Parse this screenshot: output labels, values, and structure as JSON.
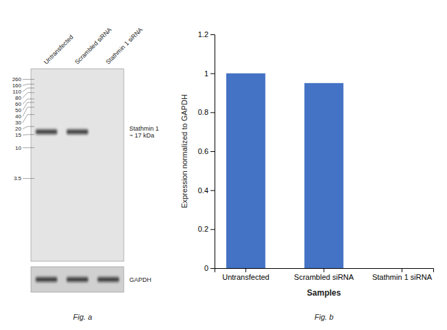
{
  "chart_data": [
    {
      "type": "blot",
      "categories": [
        "Untransfected",
        "Scrambled siRNA",
        "Stathmin 1 siRNA"
      ],
      "annotations": [
        "260",
        "160",
        "110",
        "80",
        "60",
        "50",
        "40",
        "30",
        "20",
        "15",
        "10",
        "3.5",
        "Stathmin 1\n~ 17 kDa",
        "GAPDH",
        "Fig. a"
      ]
    },
    {
      "type": "bar",
      "categories": [
        "Untransfected",
        "Scrambled siRNA",
        "Stathmin 1 siRNA"
      ],
      "values": [
        1.0,
        0.95,
        0.0
      ],
      "color": "#4472c4",
      "xlabel": "Samples",
      "ylabel": "Expression normalized to GAPDH",
      "ylim": [
        0,
        1.2
      ],
      "yticks": [
        0,
        0.2,
        0.4,
        0.6,
        0.8,
        1,
        1.2
      ],
      "annotations": [
        "Fig. b"
      ]
    }
  ]
}
